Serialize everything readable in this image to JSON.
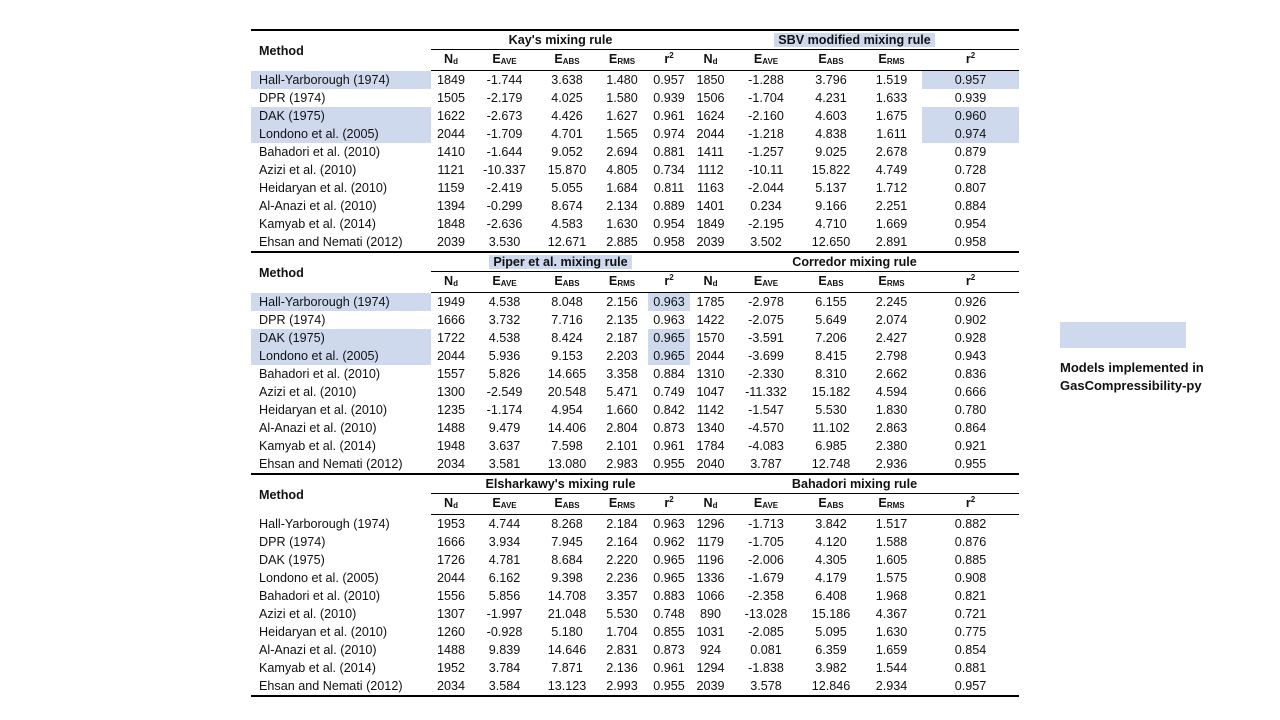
{
  "method_label": "Method",
  "columns": {
    "n": {
      "main": "N",
      "sub": "d"
    },
    "eave": {
      "main": "E",
      "sub": "AVE"
    },
    "eabs": {
      "main": "E",
      "sub": "ABS"
    },
    "erms": {
      "main": "E",
      "sub": "RMS"
    },
    "r2": {
      "main": "r",
      "sup": "2"
    }
  },
  "legend": {
    "swatch_color": "#cfd9ee",
    "text": "Models implemented in GasCompressibility-py"
  },
  "sections": [
    {
      "left_group": {
        "title": "Kay's mixing rule",
        "highlight": false
      },
      "right_group": {
        "title": "SBV modified mixing rule",
        "highlight": true
      },
      "rows": [
        {
          "method": "Hall-Yarborough (1974)",
          "left": [
            "1849",
            "-1.744",
            "3.638",
            "1.480",
            "0.957"
          ],
          "right": [
            "1850",
            "-1.288",
            "3.796",
            "1.519",
            "0.957"
          ],
          "hl_method": true,
          "hl_left_r2": false,
          "hl_right_r2": true
        },
        {
          "method": "DPR (1974)",
          "left": [
            "1505",
            "-2.179",
            "4.025",
            "1.580",
            "0.939"
          ],
          "right": [
            "1506",
            "-1.704",
            "4.231",
            "1.633",
            "0.939"
          ],
          "hl_method": false,
          "hl_left_r2": false,
          "hl_right_r2": false
        },
        {
          "method": "DAK (1975)",
          "left": [
            "1622",
            "-2.673",
            "4.426",
            "1.627",
            "0.961"
          ],
          "right": [
            "1624",
            "-2.160",
            "4.603",
            "1.675",
            "0.960"
          ],
          "hl_method": true,
          "hl_left_r2": false,
          "hl_right_r2": true
        },
        {
          "method": "Londono et al. (2005)",
          "left": [
            "2044",
            "-1.709",
            "4.701",
            "1.565",
            "0.974"
          ],
          "right": [
            "2044",
            "-1.218",
            "4.838",
            "1.611",
            "0.974"
          ],
          "hl_method": true,
          "hl_left_r2": false,
          "hl_right_r2": true
        },
        {
          "method": "Bahadori et al. (2010)",
          "left": [
            "1410",
            "-1.644",
            "9.052",
            "2.694",
            "0.881"
          ],
          "right": [
            "1411",
            "-1.257",
            "9.025",
            "2.678",
            "0.879"
          ],
          "hl_method": false,
          "hl_left_r2": false,
          "hl_right_r2": false
        },
        {
          "method": "Azizi et al. (2010)",
          "left": [
            "1121",
            "-10.337",
            "15.870",
            "4.805",
            "0.734"
          ],
          "right": [
            "1112",
            "-10.11",
            "15.822",
            "4.749",
            "0.728"
          ],
          "hl_method": false,
          "hl_left_r2": false,
          "hl_right_r2": false
        },
        {
          "method": "Heidaryan et al. (2010)",
          "left": [
            "1159",
            "-2.419",
            "5.055",
            "1.684",
            "0.811"
          ],
          "right": [
            "1163",
            "-2.044",
            "5.137",
            "1.712",
            "0.807"
          ],
          "hl_method": false,
          "hl_left_r2": false,
          "hl_right_r2": false
        },
        {
          "method": "Al-Anazi et al. (2010)",
          "left": [
            "1394",
            "-0.299",
            "8.674",
            "2.134",
            "0.889"
          ],
          "right": [
            "1401",
            "0.234",
            "9.166",
            "2.251",
            "0.884"
          ],
          "hl_method": false,
          "hl_left_r2": false,
          "hl_right_r2": false
        },
        {
          "method": "Kamyab et al. (2014)",
          "left": [
            "1848",
            "-2.636",
            "4.583",
            "1.630",
            "0.954"
          ],
          "right": [
            "1849",
            "-2.195",
            "4.710",
            "1.669",
            "0.954"
          ],
          "hl_method": false,
          "hl_left_r2": false,
          "hl_right_r2": false
        },
        {
          "method": "Ehsan and Nemati (2012)",
          "left": [
            "2039",
            "3.530",
            "12.671",
            "2.885",
            "0.958"
          ],
          "right": [
            "2039",
            "3.502",
            "12.650",
            "2.891",
            "0.958"
          ],
          "hl_method": false,
          "hl_left_r2": false,
          "hl_right_r2": false
        }
      ]
    },
    {
      "left_group": {
        "title": "Piper et al. mixing rule",
        "highlight": true
      },
      "right_group": {
        "title": "Corredor mixing rule",
        "highlight": false
      },
      "rows": [
        {
          "method": "Hall-Yarborough (1974)",
          "left": [
            "1949",
            "4.538",
            "8.048",
            "2.156",
            "0.963"
          ],
          "right": [
            "1785",
            "-2.978",
            "6.155",
            "2.245",
            "0.926"
          ],
          "hl_method": true,
          "hl_left_r2": true,
          "hl_right_r2": false
        },
        {
          "method": "DPR (1974)",
          "left": [
            "1666",
            "3.732",
            "7.716",
            "2.135",
            "0.963"
          ],
          "right": [
            "1422",
            "-2.075",
            "5.649",
            "2.074",
            "0.902"
          ],
          "hl_method": false,
          "hl_left_r2": false,
          "hl_right_r2": false
        },
        {
          "method": "DAK (1975)",
          "left": [
            "1722",
            "4.538",
            "8.424",
            "2.187",
            "0.965"
          ],
          "right": [
            "1570",
            "-3.591",
            "7.206",
            "2.427",
            "0.928"
          ],
          "hl_method": true,
          "hl_left_r2": true,
          "hl_right_r2": false
        },
        {
          "method": "Londono et al. (2005)",
          "left": [
            "2044",
            "5.936",
            "9.153",
            "2.203",
            "0.965"
          ],
          "right": [
            "2044",
            "-3.699",
            "8.415",
            "2.798",
            "0.943"
          ],
          "hl_method": true,
          "hl_left_r2": true,
          "hl_right_r2": false
        },
        {
          "method": "Bahadori et al. (2010)",
          "left": [
            "1557",
            "5.826",
            "14.665",
            "3.358",
            "0.884"
          ],
          "right": [
            "1310",
            "-2.330",
            "8.310",
            "2.662",
            "0.836"
          ],
          "hl_method": false,
          "hl_left_r2": false,
          "hl_right_r2": false
        },
        {
          "method": "Azizi et al. (2010)",
          "left": [
            "1300",
            "-2.549",
            "20.548",
            "5.471",
            "0.749"
          ],
          "right": [
            "1047",
            "-11.332",
            "15.182",
            "4.594",
            "0.666"
          ],
          "hl_method": false,
          "hl_left_r2": false,
          "hl_right_r2": false
        },
        {
          "method": "Heidaryan et al. (2010)",
          "left": [
            "1235",
            "-1.174",
            "4.954",
            "1.660",
            "0.842"
          ],
          "right": [
            "1142",
            "-1.547",
            "5.530",
            "1.830",
            "0.780"
          ],
          "hl_method": false,
          "hl_left_r2": false,
          "hl_right_r2": false
        },
        {
          "method": "Al-Anazi et al. (2010)",
          "left": [
            "1488",
            "9.479",
            "14.406",
            "2.804",
            "0.873"
          ],
          "right": [
            "1340",
            "-4.570",
            "11.102",
            "2.863",
            "0.864"
          ],
          "hl_method": false,
          "hl_left_r2": false,
          "hl_right_r2": false
        },
        {
          "method": "Kamyab et al. (2014)",
          "left": [
            "1948",
            "3.637",
            "7.598",
            "2.101",
            "0.961"
          ],
          "right": [
            "1784",
            "-4.083",
            "6.985",
            "2.380",
            "0.921"
          ],
          "hl_method": false,
          "hl_left_r2": false,
          "hl_right_r2": false
        },
        {
          "method": "Ehsan and Nemati (2012)",
          "left": [
            "2034",
            "3.581",
            "13.080",
            "2.983",
            "0.955"
          ],
          "right": [
            "2040",
            "3.787",
            "12.748",
            "2.936",
            "0.955"
          ],
          "hl_method": false,
          "hl_left_r2": false,
          "hl_right_r2": false
        }
      ]
    },
    {
      "left_group": {
        "title": "Elsharkawy's mixing rule",
        "highlight": false
      },
      "right_group": {
        "title": "Bahadori mixing rule",
        "highlight": false
      },
      "rows": [
        {
          "method": "Hall-Yarborough (1974)",
          "left": [
            "1953",
            "4.744",
            "8.268",
            "2.184",
            "0.963"
          ],
          "right": [
            "1296",
            "-1.713",
            "3.842",
            "1.517",
            "0.882"
          ],
          "hl_method": false,
          "hl_left_r2": false,
          "hl_right_r2": false
        },
        {
          "method": "DPR (1974)",
          "left": [
            "1666",
            "3.934",
            "7.945",
            "2.164",
            "0.962"
          ],
          "right": [
            "1179",
            "-1.705",
            "4.120",
            "1.588",
            "0.876"
          ],
          "hl_method": false,
          "hl_left_r2": false,
          "hl_right_r2": false
        },
        {
          "method": "DAK (1975)",
          "left": [
            "1726",
            "4.781",
            "8.684",
            "2.220",
            "0.965"
          ],
          "right": [
            "1196",
            "-2.006",
            "4.305",
            "1.605",
            "0.885"
          ],
          "hl_method": false,
          "hl_left_r2": false,
          "hl_right_r2": false
        },
        {
          "method": "Londono et al. (2005)",
          "left": [
            "2044",
            "6.162",
            "9.398",
            "2.236",
            "0.965"
          ],
          "right": [
            "1336",
            "-1.679",
            "4.179",
            "1.575",
            "0.908"
          ],
          "hl_method": false,
          "hl_left_r2": false,
          "hl_right_r2": false
        },
        {
          "method": "Bahadori et al. (2010)",
          "left": [
            "1556",
            "5.856",
            "14.708",
            "3.357",
            "0.883"
          ],
          "right": [
            "1066",
            "-2.358",
            "6.408",
            "1.968",
            "0.821"
          ],
          "hl_method": false,
          "hl_left_r2": false,
          "hl_right_r2": false
        },
        {
          "method": "Azizi et al. (2010)",
          "left": [
            "1307",
            "-1.997",
            "21.048",
            "5.530",
            "0.748"
          ],
          "right": [
            "890",
            "-13.028",
            "15.186",
            "4.367",
            "0.721"
          ],
          "hl_method": false,
          "hl_left_r2": false,
          "hl_right_r2": false
        },
        {
          "method": "Heidaryan et al. (2010)",
          "left": [
            "1260",
            "-0.928",
            "5.180",
            "1.704",
            "0.855"
          ],
          "right": [
            "1031",
            "-2.085",
            "5.095",
            "1.630",
            "0.775"
          ],
          "hl_method": false,
          "hl_left_r2": false,
          "hl_right_r2": false
        },
        {
          "method": "Al-Anazi et al. (2010)",
          "left": [
            "1488",
            "9.839",
            "14.646",
            "2.831",
            "0.873"
          ],
          "right": [
            "924",
            "0.081",
            "6.359",
            "1.659",
            "0.854"
          ],
          "hl_method": false,
          "hl_left_r2": false,
          "hl_right_r2": false
        },
        {
          "method": "Kamyab et al. (2014)",
          "left": [
            "1952",
            "3.784",
            "7.871",
            "2.136",
            "0.961"
          ],
          "right": [
            "1294",
            "-1.838",
            "3.982",
            "1.544",
            "0.881"
          ],
          "hl_method": false,
          "hl_left_r2": false,
          "hl_right_r2": false
        },
        {
          "method": "Ehsan and Nemati (2012)",
          "left": [
            "2034",
            "3.584",
            "13.123",
            "2.993",
            "0.955"
          ],
          "right": [
            "2039",
            "3.578",
            "12.846",
            "2.934",
            "0.957"
          ],
          "hl_method": false,
          "hl_left_r2": false,
          "hl_right_r2": false
        }
      ]
    }
  ]
}
